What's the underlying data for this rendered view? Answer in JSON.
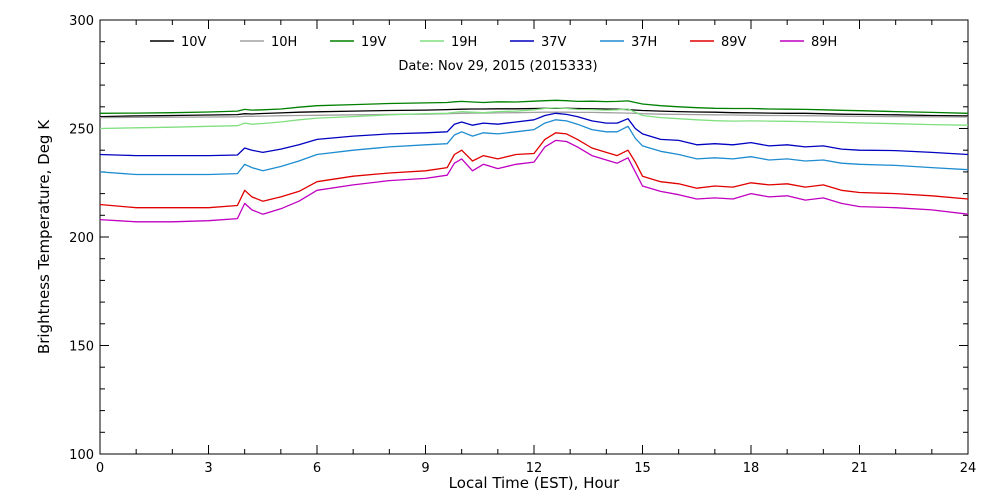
{
  "chart_data": {
    "type": "line",
    "title": "Date: Nov 29, 2015 (2015333)",
    "xlabel": "Local Time (EST), Hour",
    "ylabel": "Brightness Temperature, Deg K",
    "xlim": [
      0,
      24
    ],
    "ylim": [
      100,
      300
    ],
    "x_ticks": [
      0,
      3,
      6,
      9,
      12,
      15,
      18,
      21,
      24
    ],
    "y_ticks": [
      100,
      150,
      200,
      250,
      300
    ],
    "grid": false,
    "legend_position": "top",
    "x": [
      0,
      1,
      2,
      3,
      3.8,
      4.0,
      4.2,
      4.5,
      5,
      5.5,
      6,
      7,
      8,
      9,
      9.6,
      9.8,
      10.0,
      10.3,
      10.6,
      11,
      11.5,
      12,
      12.3,
      12.6,
      12.9,
      13.2,
      13.6,
      14.0,
      14.3,
      14.6,
      14.8,
      15.0,
      15.5,
      16,
      16.5,
      17,
      17.5,
      18,
      18.5,
      19,
      19.5,
      20,
      20.5,
      21,
      22,
      23,
      24
    ],
    "series": [
      {
        "name": "10V",
        "color": "#000000",
        "values": [
          255.5,
          255.8,
          256.0,
          256.2,
          256.4,
          256.8,
          256.7,
          256.9,
          257.2,
          257.5,
          257.7,
          258.0,
          258.3,
          258.5,
          258.7,
          258.8,
          258.9,
          259.0,
          259.0,
          259.1,
          259.1,
          259.2,
          259.3,
          259.3,
          259.3,
          259.2,
          259.1,
          259.0,
          258.9,
          258.7,
          258.5,
          258.3,
          258.0,
          257.8,
          257.6,
          257.5,
          257.3,
          257.2,
          257.1,
          257.0,
          257.0,
          256.8,
          256.6,
          256.5,
          256.3,
          256.0,
          255.8
        ]
      },
      {
        "name": "10H",
        "color": "#a0a0a0",
        "values": [
          255.0,
          255.1,
          255.2,
          255.3,
          255.4,
          255.6,
          255.6,
          255.7,
          255.9,
          256.0,
          256.1,
          256.3,
          256.5,
          256.6,
          256.8,
          256.9,
          257.0,
          257.1,
          257.1,
          257.2,
          257.3,
          257.4,
          257.5,
          257.5,
          257.5,
          257.4,
          257.4,
          257.3,
          257.2,
          257.1,
          257.0,
          256.8,
          256.6,
          256.5,
          256.4,
          256.3,
          256.2,
          256.1,
          256.0,
          256.0,
          255.9,
          255.8,
          255.7,
          255.6,
          255.5,
          255.4,
          255.3
        ]
      },
      {
        "name": "19V",
        "color": "#008000",
        "values": [
          257.0,
          257.1,
          257.3,
          257.6,
          258.0,
          258.8,
          258.5,
          258.6,
          259.0,
          259.8,
          260.5,
          261.0,
          261.5,
          261.8,
          262.0,
          262.3,
          262.5,
          262.2,
          262.0,
          262.3,
          262.2,
          262.6,
          262.8,
          263.0,
          262.8,
          262.5,
          262.6,
          262.4,
          262.5,
          262.7,
          262.0,
          261.3,
          260.5,
          260.0,
          259.6,
          259.3,
          259.2,
          259.2,
          259.0,
          258.9,
          258.8,
          258.6,
          258.4,
          258.2,
          257.8,
          257.4,
          257.0
        ]
      },
      {
        "name": "19H",
        "color": "#80e080",
        "values": [
          250.0,
          250.3,
          250.6,
          251.0,
          251.3,
          252.5,
          252.0,
          252.3,
          253.0,
          254.0,
          254.8,
          255.5,
          256.3,
          256.8,
          257.0,
          257.4,
          257.8,
          257.5,
          257.3,
          257.8,
          258.0,
          258.6,
          259.2,
          259.5,
          259.2,
          258.8,
          258.7,
          258.5,
          258.6,
          259.0,
          257.5,
          256.0,
          255.0,
          254.5,
          254.0,
          253.6,
          253.4,
          253.5,
          253.4,
          253.3,
          253.2,
          253.0,
          252.8,
          252.6,
          252.2,
          251.8,
          251.5
        ]
      },
      {
        "name": "37V",
        "color": "#0000c0",
        "values": [
          238.0,
          237.5,
          237.5,
          237.5,
          237.8,
          241.0,
          240.0,
          239.0,
          240.5,
          242.5,
          245.0,
          246.5,
          247.5,
          248.0,
          248.5,
          252.0,
          253.0,
          251.5,
          252.5,
          252.0,
          253.0,
          254.0,
          256.0,
          257.0,
          256.5,
          255.5,
          253.5,
          252.5,
          252.5,
          254.5,
          250.0,
          247.5,
          245.0,
          244.5,
          242.5,
          243.0,
          242.5,
          243.5,
          242.0,
          242.5,
          241.5,
          242.0,
          240.5,
          240.0,
          239.8,
          239.0,
          238.0
        ]
      },
      {
        "name": "37H",
        "color": "#1e8cd0",
        "values": [
          230.0,
          228.8,
          228.8,
          228.8,
          229.2,
          233.5,
          232.0,
          230.5,
          232.5,
          235.0,
          238.0,
          240.0,
          241.5,
          242.5,
          243.0,
          247.0,
          248.5,
          246.5,
          248.0,
          247.5,
          248.5,
          249.5,
          252.5,
          254.0,
          253.5,
          252.0,
          249.5,
          248.5,
          248.5,
          251.0,
          245.5,
          242.0,
          239.5,
          238.0,
          236.0,
          236.5,
          236.0,
          237.0,
          235.5,
          236.0,
          235.0,
          235.5,
          234.0,
          233.5,
          233.0,
          232.0,
          231.0
        ]
      },
      {
        "name": "89V",
        "color": "#e00000",
        "values": [
          215.0,
          213.5,
          213.5,
          213.5,
          214.5,
          221.5,
          218.5,
          216.5,
          218.5,
          221.0,
          225.5,
          228.0,
          229.5,
          230.5,
          232.0,
          238.0,
          240.0,
          235.0,
          237.5,
          236.0,
          238.0,
          238.5,
          245.0,
          248.0,
          247.5,
          245.0,
          241.0,
          239.0,
          237.5,
          240.0,
          234.5,
          228.0,
          225.5,
          224.5,
          222.5,
          223.5,
          223.0,
          225.0,
          224.0,
          224.5,
          223.0,
          224.0,
          221.5,
          220.5,
          220.0,
          219.0,
          217.5
        ]
      },
      {
        "name": "89H",
        "color": "#c000c0",
        "values": [
          208.0,
          207.0,
          207.0,
          207.5,
          208.5,
          215.5,
          212.5,
          210.5,
          213.0,
          216.5,
          221.5,
          224.0,
          226.0,
          227.0,
          228.5,
          234.0,
          236.0,
          230.5,
          233.5,
          231.5,
          233.5,
          234.5,
          241.5,
          244.5,
          244.0,
          241.5,
          237.5,
          235.5,
          234.0,
          236.5,
          230.0,
          223.5,
          221.0,
          219.5,
          217.5,
          218.0,
          217.5,
          220.0,
          218.5,
          219.0,
          217.0,
          218.0,
          215.5,
          214.0,
          213.5,
          212.5,
          210.5
        ]
      }
    ]
  }
}
